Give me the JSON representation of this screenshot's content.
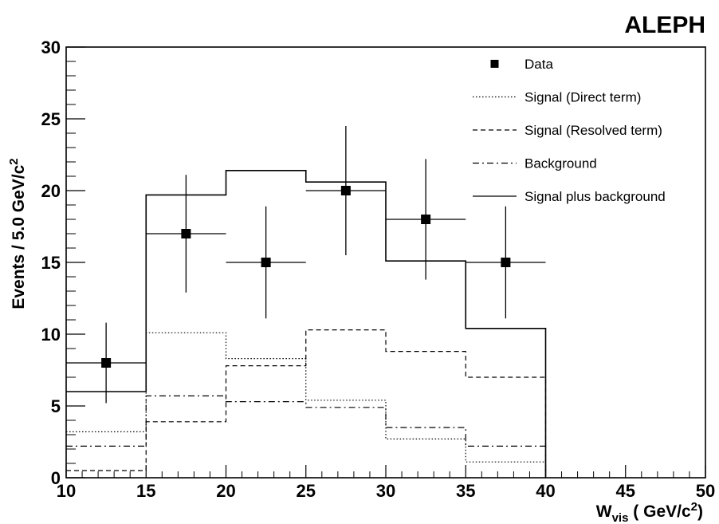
{
  "experiment_label": "ALEPH",
  "chart_data": {
    "type": "histogram",
    "xlabel": {
      "main": "W",
      "sub": "vis",
      "rest": " ( GeV/c",
      "sup": "2",
      "close": ")"
    },
    "ylabel": {
      "main": "Events / 5.0 GeV/c",
      "sup": "2"
    },
    "xlim": [
      10,
      50
    ],
    "ylim": [
      0,
      30
    ],
    "x_ticks": [
      10,
      15,
      20,
      25,
      30,
      35,
      40,
      45,
      50
    ],
    "y_ticks": [
      0,
      5,
      10,
      15,
      20,
      25,
      30
    ],
    "bin_edges": [
      10,
      15,
      20,
      25,
      30,
      35,
      40
    ],
    "grid": false,
    "legend_position": "top-right",
    "data": {
      "name": "Data",
      "x": [
        12.5,
        17.5,
        22.5,
        27.5,
        32.5,
        37.5
      ],
      "y": [
        8,
        17,
        15,
        20,
        18,
        15
      ],
      "yerr": [
        2.8,
        4.1,
        3.9,
        4.5,
        4.2,
        3.9
      ]
    },
    "series": [
      {
        "name": "Signal (Direct term)",
        "style": "dotted",
        "values": [
          3.2,
          10.1,
          8.3,
          5.4,
          2.7,
          1.1
        ]
      },
      {
        "name": "Signal (Resolved term)",
        "style": "dashed",
        "values": [
          0.5,
          3.9,
          7.8,
          10.3,
          8.8,
          7.0
        ]
      },
      {
        "name": "Background",
        "style": "dashdot",
        "values": [
          2.2,
          5.7,
          5.3,
          4.9,
          3.5,
          2.2
        ]
      },
      {
        "name": "Signal plus background",
        "style": "solid",
        "values": [
          6.0,
          19.7,
          21.4,
          20.6,
          15.1,
          10.4
        ]
      }
    ]
  }
}
